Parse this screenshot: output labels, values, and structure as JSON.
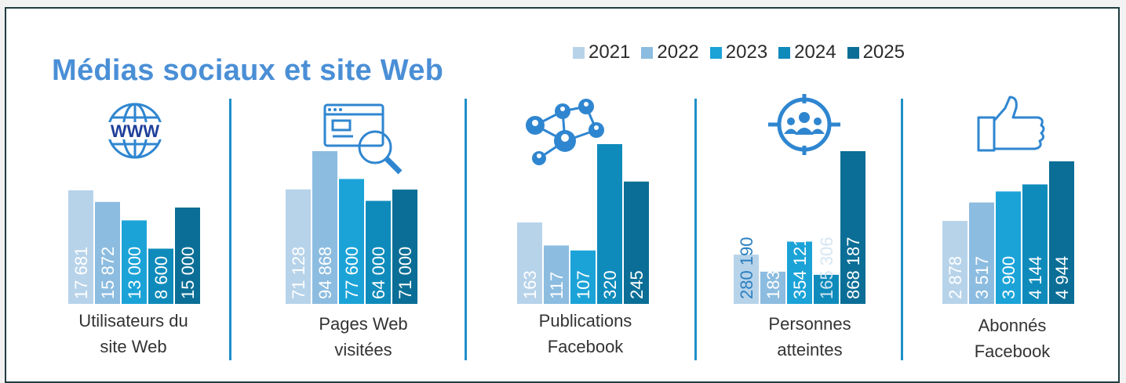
{
  "title": "Médias sociaux et site Web",
  "legend": [
    {
      "label": "2021",
      "color": "#b7d3ea"
    },
    {
      "label": "2022",
      "color": "#8cbce0"
    },
    {
      "label": "2023",
      "color": "#1ba3d8"
    },
    {
      "label": "2024",
      "color": "#0f8bbb"
    },
    {
      "label": "2025",
      "color": "#0b6e96"
    }
  ],
  "chart_data": [
    {
      "type": "bar",
      "title": "Utilisateurs du site Web",
      "icon": "www-globe-icon",
      "categories": [
        "2021",
        "2022",
        "2023",
        "2024",
        "2025"
      ],
      "values": [
        17681,
        15872,
        13000,
        8600,
        15000
      ],
      "labels": [
        "17 681",
        "15 872",
        "13 000",
        "8 600",
        "15 000"
      ]
    },
    {
      "type": "bar",
      "title": "Pages Web visitées",
      "icon": "web-page-search-icon",
      "categories": [
        "2021",
        "2022",
        "2023",
        "2024",
        "2025"
      ],
      "values": [
        71128,
        94868,
        77600,
        64000,
        71000
      ],
      "labels": [
        "71 128",
        "94 868",
        "77 600",
        "64 000",
        "71 000"
      ]
    },
    {
      "type": "bar",
      "title": "Publications Facebook",
      "icon": "social-network-icon",
      "categories": [
        "2021",
        "2022",
        "2023",
        "2024",
        "2025"
      ],
      "values": [
        163,
        117,
        107,
        320,
        245
      ],
      "labels": [
        "163",
        "117",
        "107",
        "320",
        "245"
      ]
    },
    {
      "type": "bar",
      "title": "Personnes atteintes",
      "icon": "target-audience-icon",
      "categories": [
        "2021",
        "2022",
        "2023",
        "2024",
        "2025"
      ],
      "values": [
        280190,
        183164,
        354121,
        165306,
        868187
      ],
      "labels": [
        "280 190",
        "183 164",
        "354 121",
        "165 306",
        "868 187"
      ]
    },
    {
      "type": "bar",
      "title": "Abonnés Facebook",
      "icon": "thumbs-up-icon",
      "categories": [
        "2021",
        "2022",
        "2023",
        "2024",
        "2025"
      ],
      "values": [
        2878,
        3517,
        3900,
        4144,
        4944
      ],
      "labels": [
        "2 878",
        "3 517",
        "3 900",
        "4 144",
        "4 944"
      ]
    }
  ],
  "panel_labels": [
    [
      "Utilisateurs du",
      "site Web"
    ],
    [
      "Pages Web",
      "visitées"
    ],
    [
      "Publications",
      "Facebook"
    ],
    [
      "Personnes",
      "atteintes"
    ],
    [
      "Abonnés",
      "Facebook"
    ]
  ]
}
